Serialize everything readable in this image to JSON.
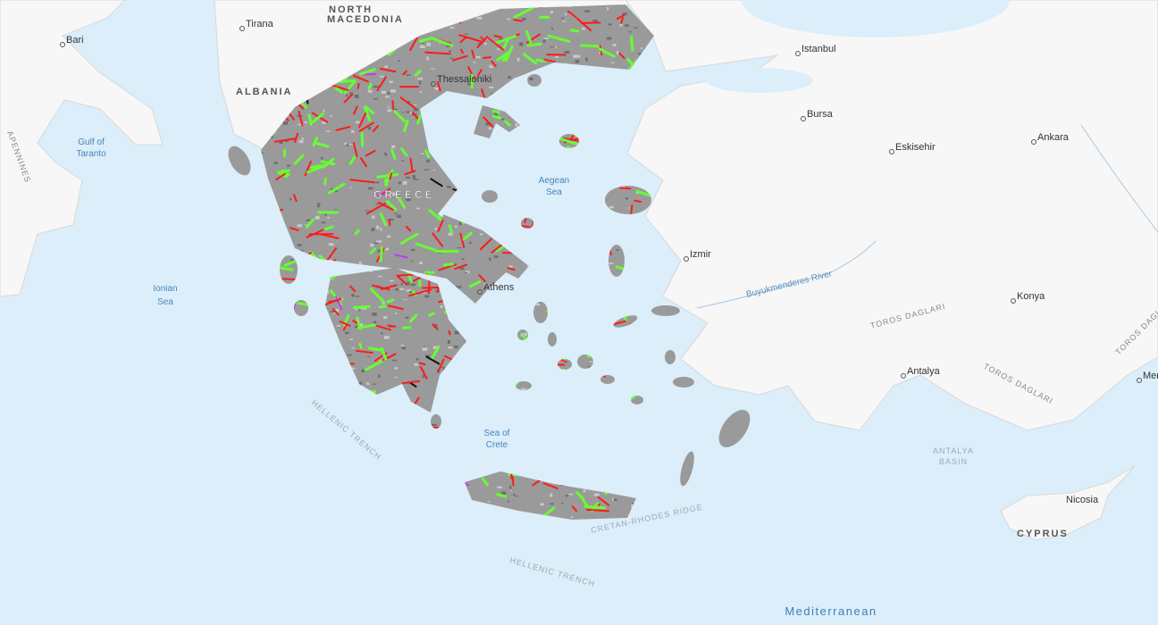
{
  "map": {
    "colors": {
      "water": "#dbeefa",
      "land": "#f7f7f7",
      "greece_relief": "#9a9a9a",
      "fault_red": "#ff1a1a",
      "fault_green": "#66ff33",
      "fault_magenta": "#cc33ff",
      "fault_black": "#111111"
    },
    "labels": {
      "north_macedonia_1": "NORTH",
      "north_macedonia_2": "MACEDONIA",
      "albania": "ALBANIA",
      "greece": "GREECE",
      "cyprus": "CYPRUS",
      "tirana": "Tirana",
      "bari": "Bari",
      "thessaloniki": "Thessaloniki",
      "athens": "Athens",
      "istanbul": "Istanbul",
      "bursa": "Bursa",
      "eskisehir": "Eskisehir",
      "ankara": "Ankara",
      "izmir": "Izmir",
      "konya": "Konya",
      "antalya": "Antalya",
      "nicosia": "Nicosia",
      "mersin": "Mer",
      "gulf_taranto_1": "Gulf of",
      "gulf_taranto_2": "Taranto",
      "ionian_1": "Ionian",
      "ionian_2": "Sea",
      "aegean_1": "Aegean",
      "aegean_2": "Sea",
      "crete_sea_1": "Sea of",
      "crete_sea_2": "Crete",
      "mediterranean": "Mediterranean",
      "apennines": "APENNINES",
      "hellenic_trench_1": "HELLENIC TRENCH",
      "hellenic_trench_2": "HELLENIC TRENCH",
      "cretan_rhodes": "CRETAN-RHODES RIDGE",
      "antalya_basin_1": "ANTALYA",
      "antalya_basin_2": "BASIN",
      "toros_1": "TOROS DAGLARI",
      "toros_2": "TOROS DAGLARI",
      "toros_3": "TOROS DAGL",
      "river": "Buyukmenderes River"
    }
  }
}
